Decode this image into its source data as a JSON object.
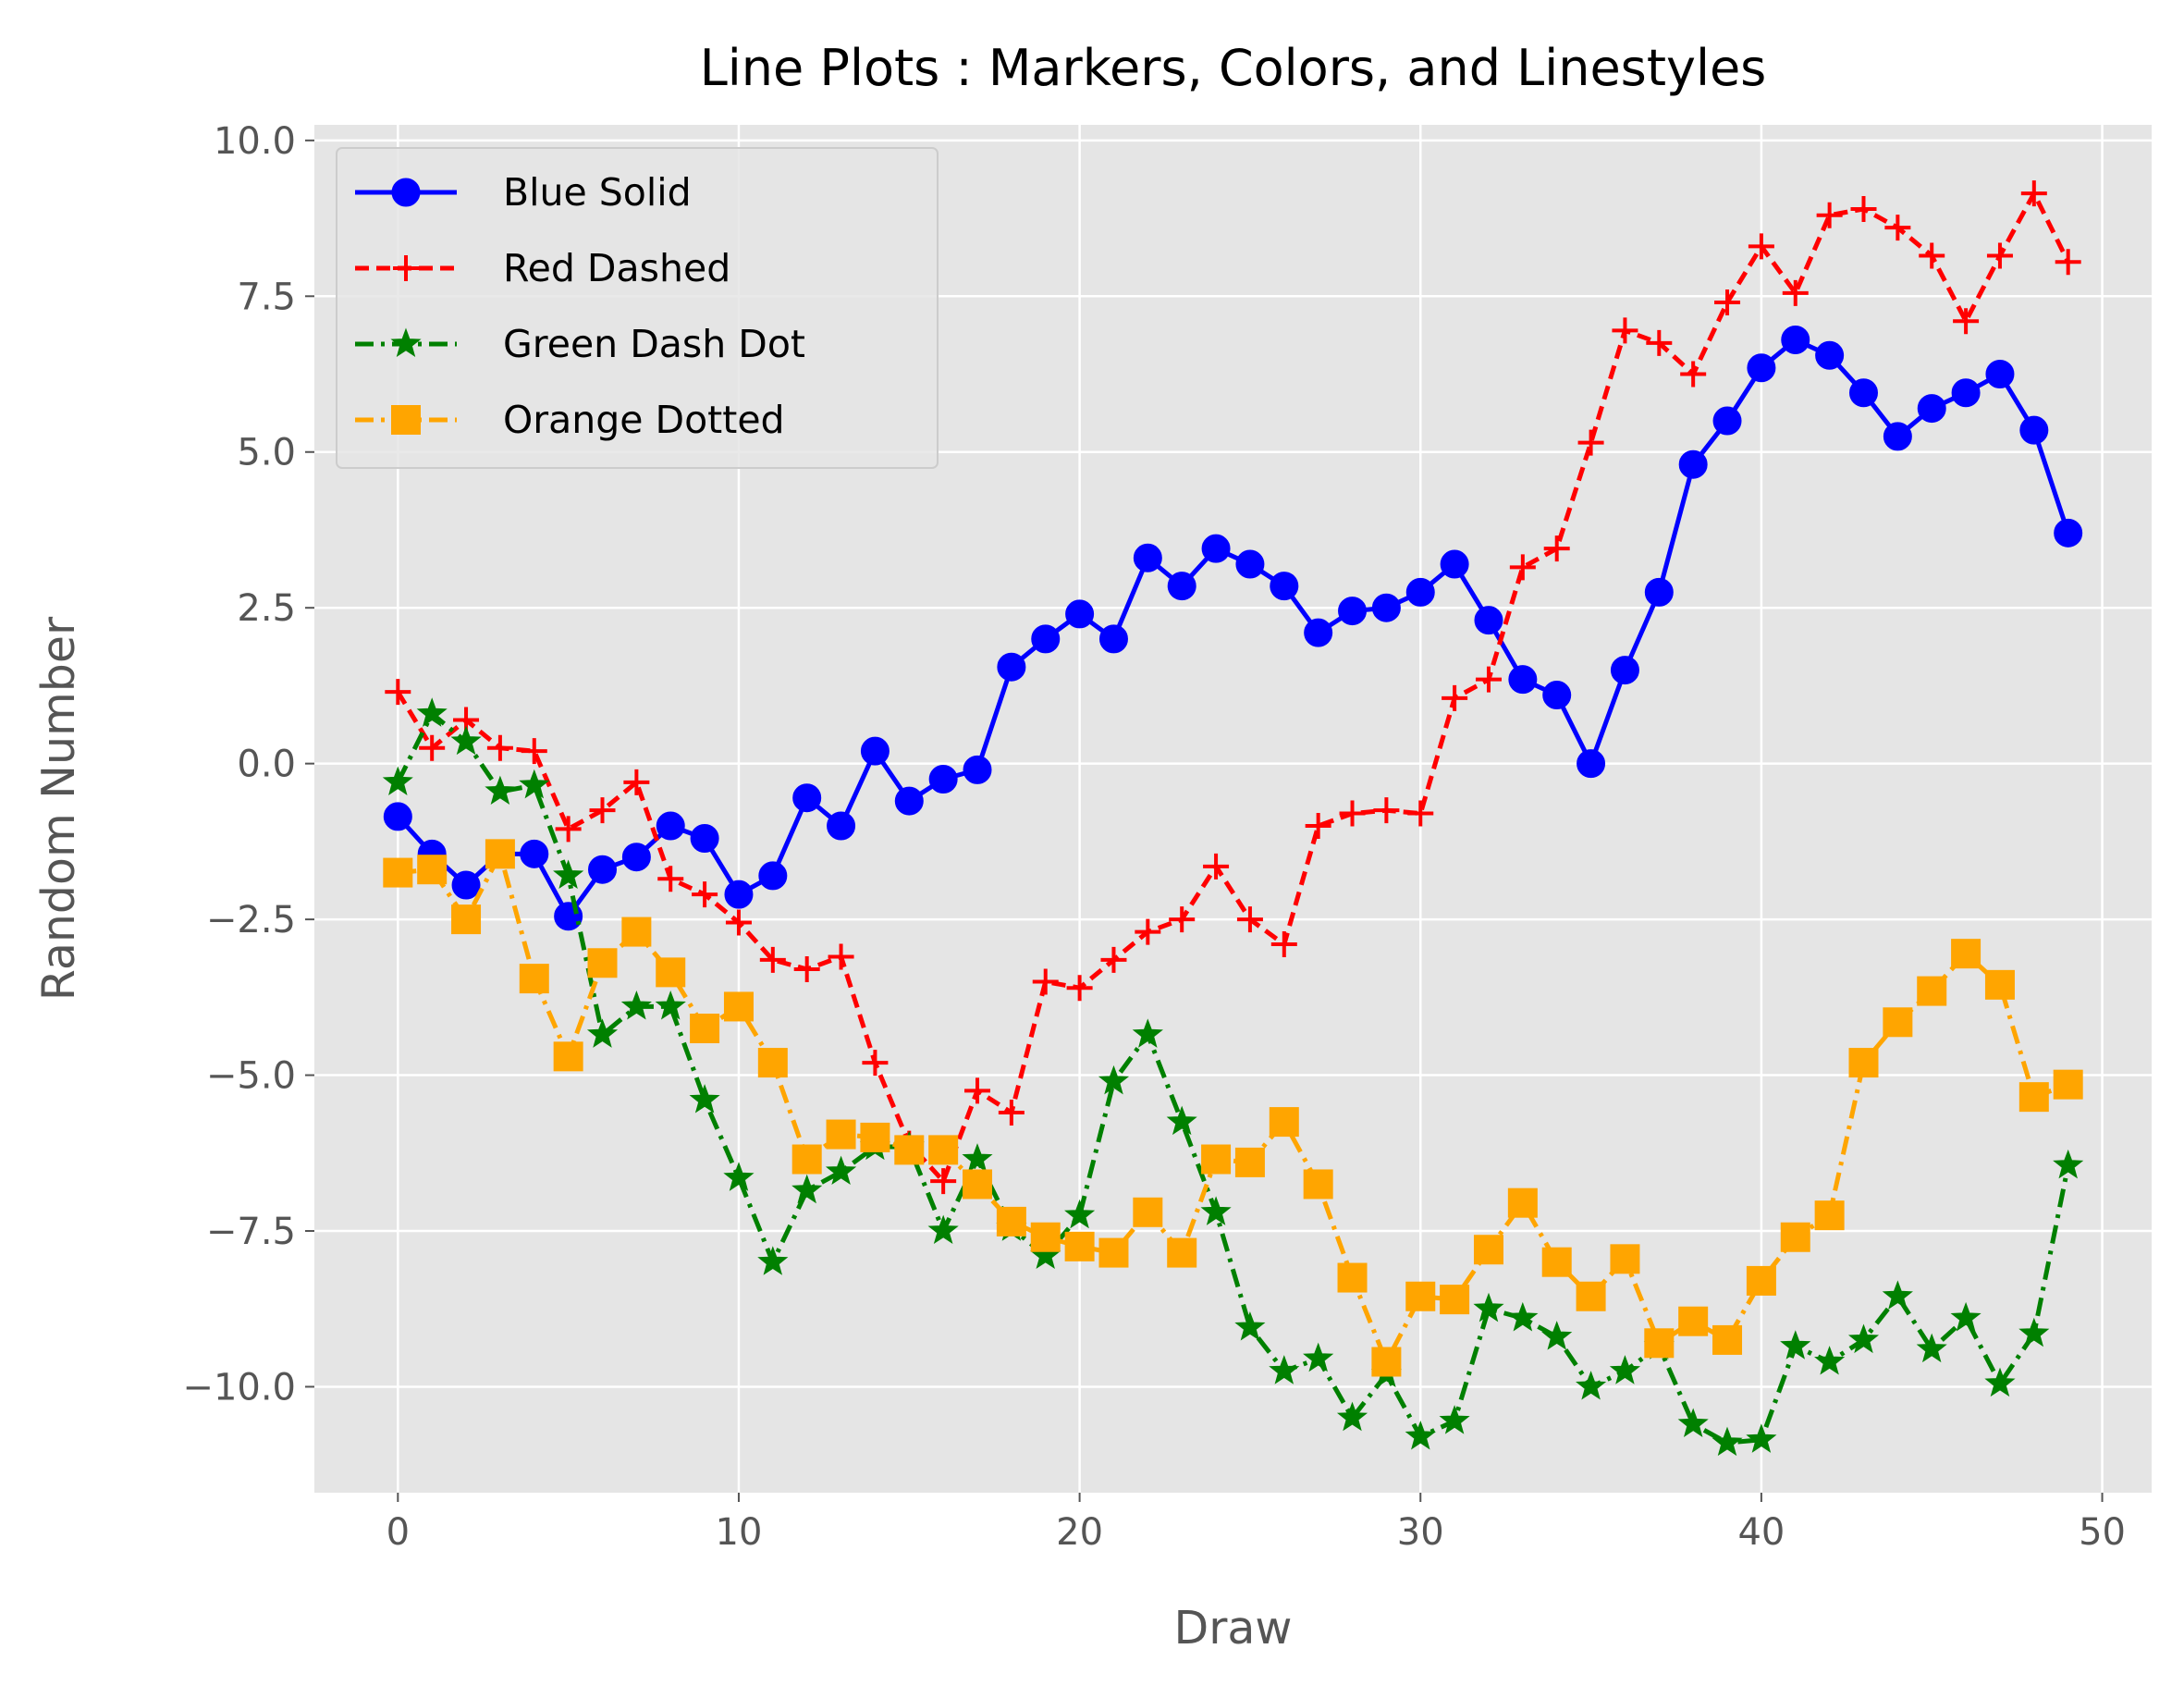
{
  "chart_data": {
    "type": "line",
    "title": "Line Plots : Markers, Colors, and Linestyles",
    "xlabel": "Draw",
    "ylabel": "Random Number",
    "xlim": [
      -2.45,
      51.45
    ],
    "ylim": [
      -11.7,
      10.25
    ],
    "xticks": [
      0,
      10,
      20,
      30,
      40,
      50
    ],
    "xtick_labels": [
      "0",
      "10",
      "20",
      "30",
      "40",
      "50"
    ],
    "yticks": [
      -10.0,
      -7.5,
      -5.0,
      -2.5,
      0.0,
      2.5,
      5.0,
      7.5,
      10.0
    ],
    "ytick_labels": [
      "−10.0",
      "−7.5",
      "−5.0",
      "−2.5",
      "0.0",
      "2.5",
      "5.0",
      "7.5",
      "10.0"
    ],
    "grid": true,
    "background": "#e5e5e5",
    "legend_position": "upper-left",
    "x": [
      0,
      1,
      2,
      3,
      4,
      5,
      6,
      7,
      8,
      9,
      10,
      11,
      12,
      13,
      14,
      15,
      16,
      17,
      18,
      19,
      20,
      21,
      22,
      23,
      24,
      25,
      26,
      27,
      28,
      29,
      30,
      31,
      32,
      33,
      34,
      35,
      36,
      37,
      38,
      39,
      40,
      41,
      42,
      43,
      44,
      45,
      46,
      47,
      48,
      49
    ],
    "series": [
      {
        "name": "Blue Solid",
        "color": "#0000ff",
        "linestyle": "solid",
        "marker": "circle",
        "values": [
          -0.85,
          -1.45,
          -1.95,
          -1.45,
          -1.45,
          -2.45,
          -1.7,
          -1.5,
          -1.0,
          -1.2,
          -2.1,
          -1.8,
          -0.55,
          -1.0,
          0.2,
          -0.6,
          -0.25,
          -0.1,
          1.55,
          2.0,
          2.4,
          2.0,
          3.3,
          2.85,
          3.45,
          3.2,
          2.85,
          2.1,
          2.45,
          2.5,
          2.75,
          3.2,
          2.3,
          1.35,
          1.1,
          0.0,
          1.5,
          2.75,
          4.8,
          5.5,
          6.35,
          6.8,
          6.55,
          5.95,
          5.25,
          5.7,
          5.95,
          6.25,
          5.35,
          3.7
        ]
      },
      {
        "name": "Red Dashed",
        "color": "#ff0000",
        "linestyle": "dashed",
        "marker": "plus",
        "values": [
          1.15,
          0.25,
          0.7,
          0.25,
          0.2,
          -1.05,
          -0.75,
          -0.3,
          -1.85,
          -2.1,
          -2.55,
          -3.15,
          -3.3,
          -3.1,
          -4.8,
          -6.1,
          -6.7,
          -5.25,
          -5.6,
          -3.5,
          -3.6,
          -3.15,
          -2.7,
          -2.5,
          -1.65,
          -2.5,
          -2.9,
          -1.0,
          -0.8,
          -0.75,
          -0.8,
          1.05,
          1.35,
          3.15,
          3.45,
          5.15,
          6.95,
          6.75,
          6.25,
          7.4,
          8.3,
          7.55,
          8.8,
          8.9,
          8.6,
          8.15,
          7.1,
          8.15,
          9.15,
          8.05
        ]
      },
      {
        "name": "Green Dash Dot",
        "color": "#008000",
        "linestyle": "dashdot",
        "marker": "star",
        "values": [
          -0.3,
          0.8,
          0.35,
          -0.45,
          -0.35,
          -1.8,
          -4.35,
          -3.9,
          -3.9,
          -5.4,
          -6.65,
          -8.0,
          -6.85,
          -6.55,
          -6.15,
          -6.15,
          -7.5,
          -6.35,
          -7.45,
          -7.9,
          -7.25,
          -5.1,
          -4.35,
          -5.75,
          -7.2,
          -9.05,
          -9.75,
          -9.55,
          -10.5,
          -9.8,
          -10.8,
          -10.55,
          -8.75,
          -8.9,
          -9.2,
          -10.0,
          -9.75,
          -9.35,
          -10.6,
          -10.9,
          -10.85,
          -9.35,
          -9.6,
          -9.25,
          -8.55,
          -9.4,
          -8.9,
          -9.95,
          -9.15,
          -6.45
        ]
      },
      {
        "name": "Orange Dotted",
        "color": "#ffa500",
        "linestyle": "dashdot",
        "marker": "square",
        "values": [
          -1.75,
          -1.7,
          -2.5,
          -1.45,
          -3.45,
          -4.7,
          -3.2,
          -2.7,
          -3.35,
          -4.25,
          -3.9,
          -4.8,
          -6.35,
          -5.95,
          -6.0,
          -6.2,
          -6.2,
          -6.75,
          -7.35,
          -7.6,
          -7.75,
          -7.85,
          -7.2,
          -7.85,
          -6.35,
          -6.4,
          -5.75,
          -6.75,
          -8.25,
          -9.6,
          -8.55,
          -8.6,
          -7.8,
          -7.05,
          -8.0,
          -8.55,
          -7.95,
          -9.3,
          -8.95,
          -9.25,
          -8.3,
          -7.6,
          -7.25,
          -4.8,
          -4.15,
          -3.65,
          -3.05,
          -3.55,
          -5.35,
          -5.15
        ]
      }
    ]
  }
}
